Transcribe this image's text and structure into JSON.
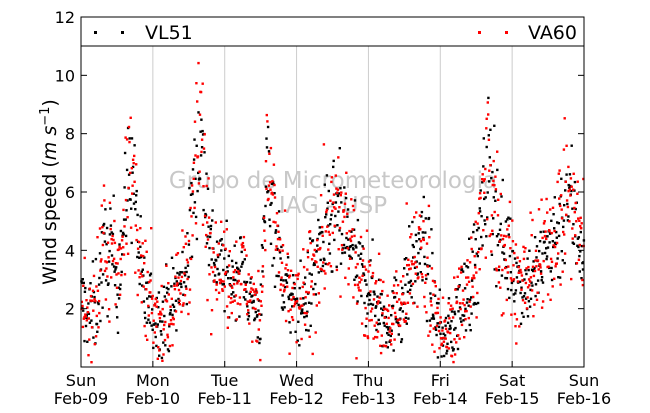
{
  "chart_data": {
    "type": "scatter",
    "title": "",
    "ylabel": "Wind speed",
    "ylabel_unit": "(m s^-1)",
    "ylim": [
      0,
      12
    ],
    "yticks": [
      2,
      4,
      6,
      8,
      10,
      12
    ],
    "grid": "vertical at day boundaries",
    "legend_placement": "top, spanning full width",
    "watermark": [
      "Grupo de Micrometeorologia",
      "IAG - USP"
    ],
    "x_range": [
      "2014-02-09T00:00",
      "2014-02-16T00:00"
    ],
    "x_ticks": [
      {
        "day": "Sun",
        "date": "Feb-09"
      },
      {
        "day": "Mon",
        "date": "Feb-10"
      },
      {
        "day": "Tue",
        "date": "Feb-11"
      },
      {
        "day": "Wed",
        "date": "Feb-12"
      },
      {
        "day": "Thu",
        "date": "Feb-13"
      },
      {
        "day": "Fri",
        "date": "Feb-14"
      },
      {
        "day": "Sat",
        "date": "Feb-15"
      },
      {
        "day": "Sun",
        "date": "Feb-16"
      }
    ],
    "series": [
      {
        "name": "VL51",
        "color": "#000000",
        "marker": "square-dot"
      },
      {
        "name": "VA60",
        "color": "#ff0000",
        "marker": "square-dot"
      }
    ],
    "trend_days": [
      0,
      0.08,
      0.17,
      0.25,
      0.33,
      0.42,
      0.5,
      0.58,
      0.67,
      0.75,
      0.83,
      0.92,
      1,
      1.08,
      1.17,
      1.25,
      1.33,
      1.42,
      1.5,
      1.58,
      1.67,
      1.75,
      1.83,
      1.92,
      2,
      2.08,
      2.17,
      2.25,
      2.33,
      2.42,
      2.5,
      2.58,
      2.67,
      2.75,
      2.83,
      2.92,
      3,
      3.08,
      3.17,
      3.25,
      3.33,
      3.42,
      3.5,
      3.58,
      3.67,
      3.75,
      3.83,
      3.92,
      4,
      4.08,
      4.17,
      4.25,
      4.33,
      4.42,
      4.5,
      4.58,
      4.67,
      4.75,
      4.83,
      4.92,
      5,
      5.08,
      5.17,
      5.25,
      5.33,
      5.42,
      5.5,
      5.58,
      5.67,
      5.75,
      5.83,
      5.92,
      6,
      6.08,
      6.17,
      6.25,
      6.33,
      6.42,
      6.5,
      6.58,
      6.67,
      6.75,
      6.83,
      6.92,
      7
    ],
    "trend_speed": [
      2.2,
      2.0,
      1.8,
      2.8,
      3.8,
      4.0,
      3.0,
      4.5,
      6.8,
      6.0,
      3.0,
      2.2,
      1.9,
      1.7,
      2.0,
      2.2,
      2.5,
      3.0,
      4.0,
      6.5,
      8.0,
      5.5,
      4.0,
      3.5,
      3.3,
      3.0,
      3.2,
      3.5,
      2.5,
      2.0,
      1.8,
      6.8,
      5.5,
      3.8,
      2.8,
      2.2,
      2.0,
      2.2,
      2.5,
      3.5,
      4.2,
      4.5,
      4.8,
      5.0,
      4.5,
      4.2,
      3.5,
      3.0,
      2.8,
      2.5,
      2.0,
      1.5,
      1.7,
      2.0,
      2.5,
      3.0,
      3.8,
      4.2,
      3.5,
      2.0,
      1.2,
      1.0,
      1.5,
      2.0,
      2.5,
      3.0,
      3.5,
      5.0,
      7.0,
      6.0,
      4.5,
      4.0,
      3.5,
      3.0,
      2.8,
      3.0,
      3.3,
      3.5,
      4.2,
      4.5,
      4.8,
      6.0,
      5.5,
      4.5,
      4.0
    ],
    "trend_spread": [
      0.8,
      0.8,
      0.9,
      1.0,
      1.0,
      1.2,
      1.0,
      1.0,
      1.2,
      1.2,
      1.0,
      0.8,
      0.8,
      0.7,
      0.8,
      0.8,
      0.9,
      1.0,
      1.0,
      1.3,
      1.3,
      1.2,
      0.9,
      0.8,
      0.8,
      0.7,
      0.7,
      0.7,
      0.7,
      0.6,
      0.7,
      1.3,
      1.2,
      1.0,
      0.8,
      0.7,
      0.7,
      0.8,
      0.9,
      1.0,
      1.0,
      1.0,
      1.2,
      1.2,
      1.2,
      1.0,
      0.9,
      0.8,
      0.8,
      0.8,
      0.7,
      0.6,
      0.7,
      0.8,
      0.9,
      1.0,
      1.0,
      1.0,
      1.0,
      0.8,
      0.6,
      0.5,
      0.7,
      0.8,
      0.9,
      1.0,
      1.0,
      1.2,
      1.5,
      1.4,
      1.1,
      1.0,
      0.8,
      0.8,
      0.8,
      0.8,
      0.8,
      0.9,
      1.0,
      1.0,
      1.1,
      1.2,
      1.2,
      1.0,
      1.0
    ]
  }
}
